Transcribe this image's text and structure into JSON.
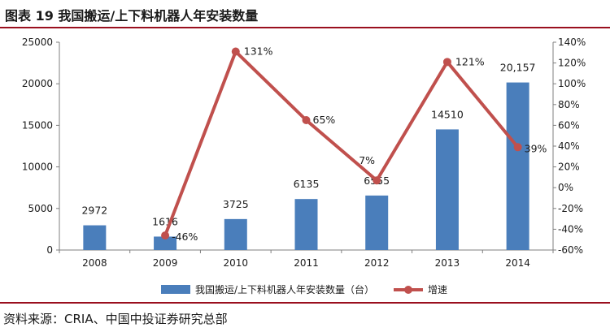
{
  "title": "图表 19  我国搬运/上下料机器人年安装数量",
  "source": "资料来源：CRIA、中国中投证券研究总部",
  "colors": {
    "bar": "#4a7ebb",
    "line": "#c0504d",
    "title_rule": "#9a0f1e"
  },
  "chart_data": {
    "type": "bar",
    "categories": [
      "2008",
      "2009",
      "2010",
      "2011",
      "2012",
      "2013",
      "2014"
    ],
    "series": [
      {
        "name": "我国搬运/上下料机器人年安装数量（台）",
        "type": "bar",
        "axis": "left",
        "values": [
          2972,
          1616,
          3725,
          6135,
          6555,
          14510,
          20157
        ],
        "labels": [
          "2972",
          "1616",
          "3725",
          "6135",
          "6555",
          "14510",
          "20,157"
        ]
      },
      {
        "name": "增速",
        "type": "line",
        "axis": "right",
        "values": [
          null,
          -46,
          131,
          65,
          7,
          121,
          39
        ],
        "labels": [
          "",
          "-46%",
          "131%",
          "65%",
          "7%",
          "121%",
          "39%"
        ]
      }
    ],
    "y_left": {
      "min": 0,
      "max": 25000,
      "ticks": [
        "0",
        "5000",
        "10000",
        "15000",
        "20000",
        "25000"
      ]
    },
    "y_right": {
      "min": -60,
      "max": 140,
      "ticks": [
        "-60%",
        "-40%",
        "-20%",
        "0%",
        "20%",
        "40%",
        "60%",
        "80%",
        "100%",
        "120%",
        "140%"
      ]
    },
    "grid": false,
    "legend_position": "bottom"
  }
}
